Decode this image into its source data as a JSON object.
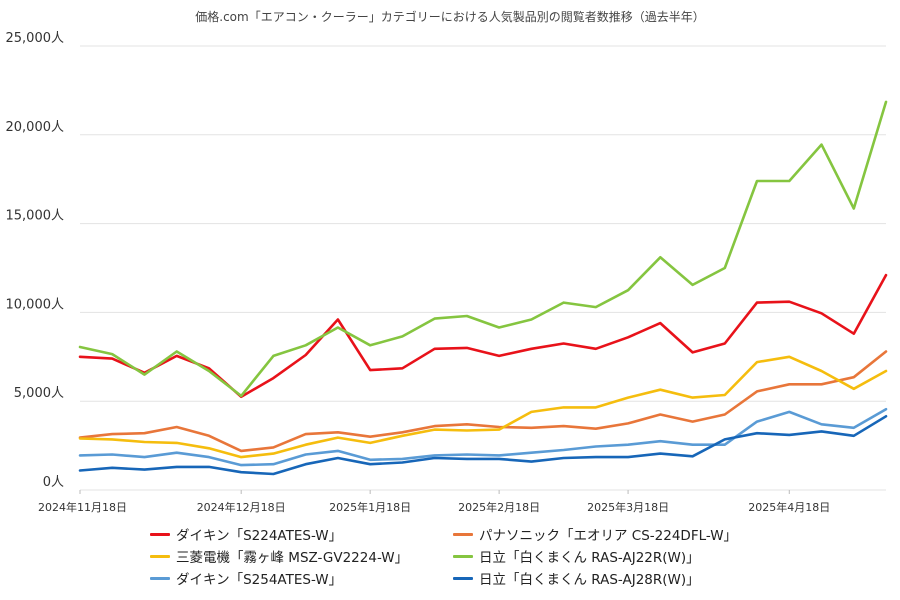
{
  "chart_data": {
    "type": "line",
    "title": "価格.com「エアコン・クーラー」カテゴリーにおける人気製品別の閲覧者数推移（過去半年）",
    "ylim": [
      0,
      25000
    ],
    "yticks": [
      0,
      5000,
      10000,
      15000,
      20000,
      25000
    ],
    "ytick_labels": [
      "0人",
      "5,000人",
      "10,000人",
      "15,000人",
      "20,000人",
      "25,000人"
    ],
    "x_count": 26,
    "xticks": [
      {
        "index": 0,
        "label": "2024年11月18日"
      },
      {
        "index": 5,
        "label": "2024年12月18日"
      },
      {
        "index": 9,
        "label": "2025年1月18日"
      },
      {
        "index": 13,
        "label": "2025年2月18日"
      },
      {
        "index": 17,
        "label": "2025年3月18日"
      },
      {
        "index": 22,
        "label": "2025年4月18日"
      }
    ],
    "grid": true,
    "legend_position": "bottom",
    "series": [
      {
        "name": "ダイキン「S224ATES-W」",
        "color": "#e8121a",
        "values": [
          7500,
          7400,
          6600,
          7550,
          6850,
          5250,
          6300,
          7600,
          9600,
          6750,
          6850,
          7950,
          8000,
          7550,
          7950,
          8250,
          7950,
          8600,
          9400,
          7750,
          8250,
          10550,
          10600,
          9950,
          8800,
          12100
        ]
      },
      {
        "name": "パナソニック「エオリア CS-224DFL-W」",
        "color": "#e8763a",
        "values": [
          2950,
          3150,
          3200,
          3550,
          3050,
          2200,
          2400,
          3150,
          3250,
          3000,
          3250,
          3600,
          3700,
          3550,
          3500,
          3600,
          3450,
          3750,
          4250,
          3850,
          4250,
          5550,
          5950,
          5950,
          6350,
          7800
        ]
      },
      {
        "name": "三菱電機「霧ヶ峰 MSZ-GV2224-W」",
        "color": "#f5bd0e",
        "values": [
          2900,
          2850,
          2700,
          2650,
          2350,
          1850,
          2050,
          2550,
          2950,
          2650,
          3050,
          3400,
          3350,
          3400,
          4400,
          4650,
          4650,
          5200,
          5650,
          5200,
          5350,
          7200,
          7500,
          6700,
          5700,
          6700
        ]
      },
      {
        "name": "日立「白くまくん RAS-AJ22R(W)」",
        "color": "#85c540",
        "values": [
          8050,
          7650,
          6500,
          7800,
          6700,
          5300,
          7550,
          8150,
          9150,
          8150,
          8650,
          9650,
          9800,
          9150,
          9600,
          10550,
          10300,
          11250,
          13100,
          11550,
          12500,
          17400,
          17400,
          19450,
          15850,
          21850
        ]
      },
      {
        "name": "ダイキン「S254ATES-W」",
        "color": "#5a9bd5",
        "values": [
          1950,
          2000,
          1850,
          2100,
          1850,
          1400,
          1450,
          2000,
          2200,
          1700,
          1750,
          1950,
          2000,
          1950,
          2100,
          2250,
          2450,
          2550,
          2750,
          2550,
          2550,
          3850,
          4400,
          3700,
          3500,
          4550
        ]
      },
      {
        "name": "日立「白くまくん RAS-AJ28R(W)」",
        "color": "#1766b8",
        "values": [
          1100,
          1250,
          1150,
          1300,
          1300,
          1000,
          900,
          1450,
          1800,
          1450,
          1550,
          1800,
          1750,
          1750,
          1600,
          1800,
          1850,
          1850,
          2050,
          1900,
          2850,
          3200,
          3100,
          3300,
          3050,
          4150
        ]
      }
    ]
  }
}
